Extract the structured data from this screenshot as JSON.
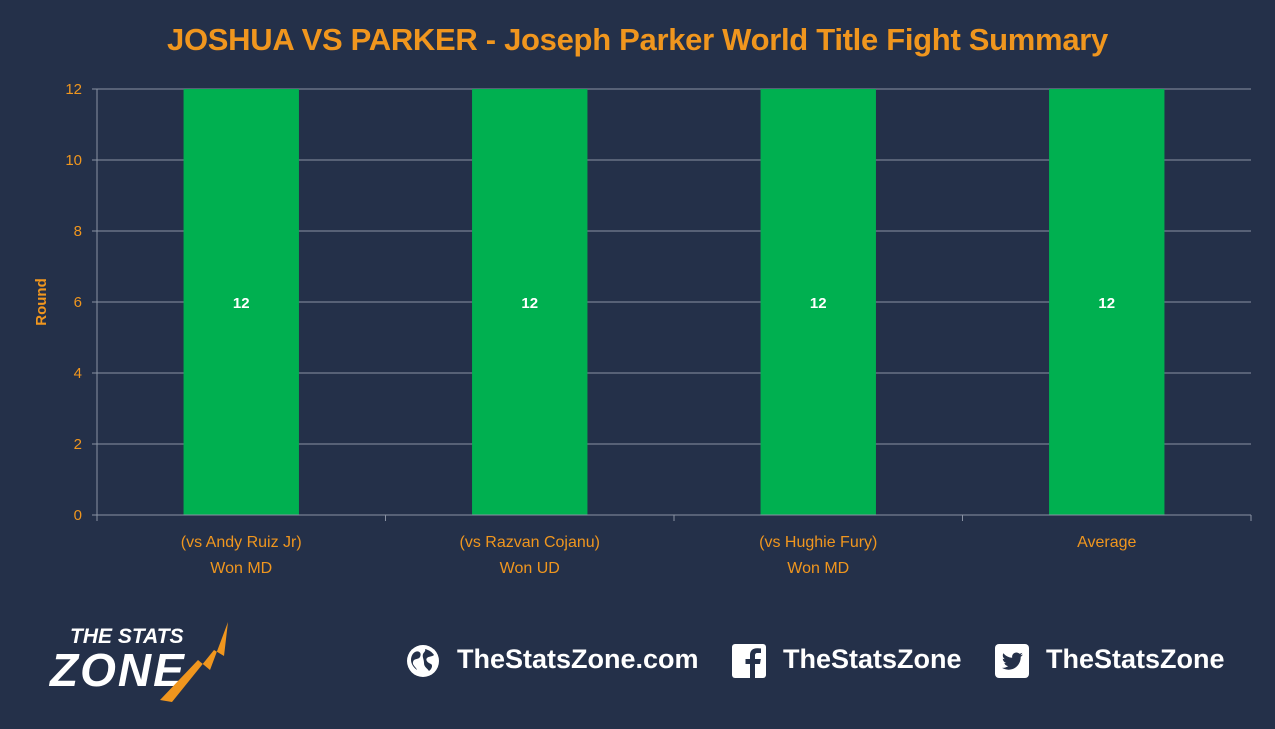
{
  "chart_data": {
    "type": "bar",
    "title": "JOSHUA VS PARKER - Joseph Parker World Title Fight Summary",
    "ylabel": "Round",
    "xlabel": "",
    "ylim": [
      0,
      12
    ],
    "yticks": [
      0,
      2,
      4,
      6,
      8,
      10,
      12
    ],
    "categories": [
      [
        "(vs Andy Ruiz Jr)",
        "Won MD"
      ],
      [
        "(vs Razvan Cojanu)",
        "Won UD"
      ],
      [
        "(vs Hughie Fury)",
        "Won MD"
      ],
      [
        "Average"
      ]
    ],
    "values": [
      12,
      12,
      12,
      12
    ],
    "data_labels": [
      "12",
      "12",
      "12",
      "12"
    ],
    "bar_color": "#00b050",
    "grid": true,
    "legend": "none"
  },
  "footer": {
    "logo_line1": "THE STATS",
    "logo_line2": "ZONE",
    "website": "TheStatsZone.com",
    "facebook": "TheStatsZone",
    "twitter": "TheStatsZone",
    "icons": [
      "globe-icon",
      "facebook-icon",
      "twitter-icon"
    ]
  },
  "colors": {
    "background": "#243049",
    "accent": "#f0961e",
    "grid": "#8a92a3"
  }
}
